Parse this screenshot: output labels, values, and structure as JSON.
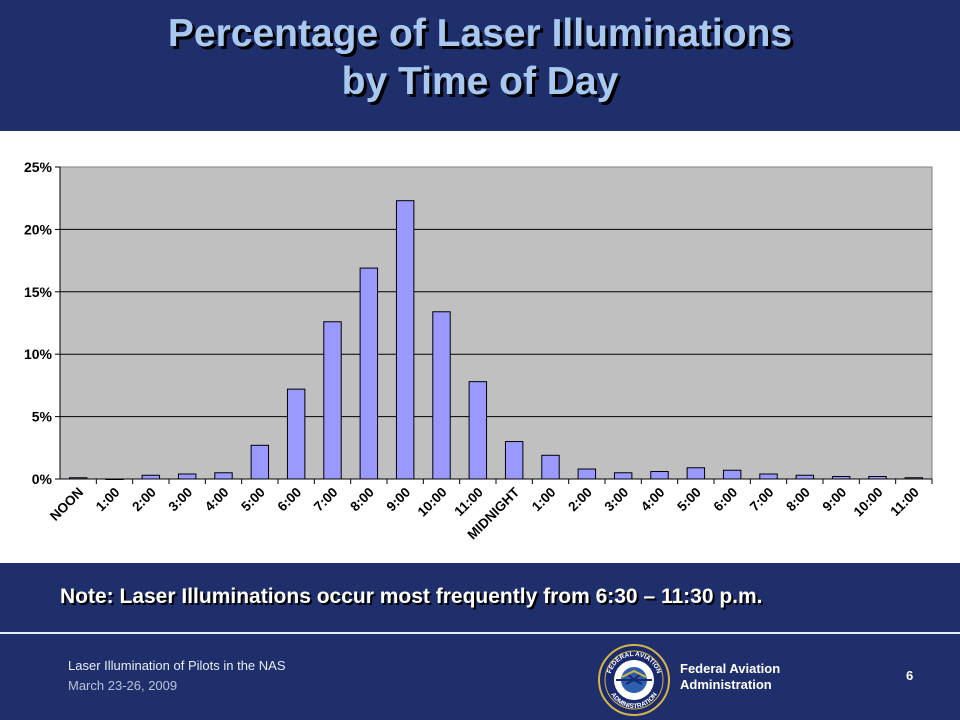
{
  "title": {
    "line1": "Percentage of Laser Illuminations",
    "line2": "by Time of Day"
  },
  "note": "Note: Laser Illuminations occur most frequently from 6:30 – 11:30 p.m.",
  "footer": {
    "presentation": "Laser Illumination  of Pilots in the NAS",
    "date": "March 23-26, 2009",
    "org_line1": "Federal Aviation",
    "org_line2": "Administration",
    "page_number": "6",
    "seal_text_top": "FEDERAL AVIATION",
    "seal_text_bottom": "ADMINISTRATION"
  },
  "colors": {
    "background": "#1f2f6b",
    "title": "#a8c8f0",
    "bar": "#9999ff",
    "plot_area": "#c0c0c0"
  },
  "chart_data": {
    "type": "bar",
    "categories": [
      "NOON",
      "1:00",
      "2:00",
      "3:00",
      "4:00",
      "5:00",
      "6:00",
      "7:00",
      "8:00",
      "9:00",
      "10:00",
      "11:00",
      "MIDNIGHT",
      "1:00",
      "2:00",
      "3:00",
      "4:00",
      "5:00",
      "6:00",
      "7:00",
      "8:00",
      "9:00",
      "10:00",
      "11:00"
    ],
    "values": [
      0.1,
      0.0,
      0.3,
      0.4,
      0.5,
      2.7,
      7.2,
      12.6,
      16.9,
      22.3,
      13.4,
      7.8,
      3.0,
      1.9,
      0.8,
      0.5,
      0.6,
      0.9,
      0.7,
      0.4,
      0.3,
      0.2,
      0.2,
      0.1
    ],
    "yticks": [
      "0%",
      "5%",
      "10%",
      "15%",
      "20%",
      "25%"
    ],
    "ylim": [
      0,
      25
    ],
    "title": "",
    "xlabel": "",
    "ylabel": "",
    "grid": true
  }
}
